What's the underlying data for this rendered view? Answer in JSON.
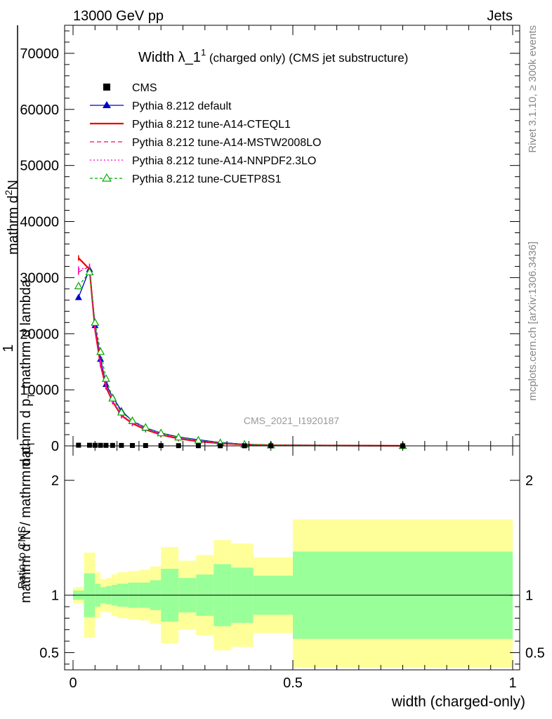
{
  "header": {
    "energy_label": "13000 GeV pp",
    "group_label": "Jets",
    "analysis_id": "CMS_2021_I1920187",
    "side_rivet": "Rivet 3.1.10, ≥ 300k events",
    "side_mcplots": "mcplots.cern.ch [arXiv:1306.3436]"
  },
  "chart_data": [
    {
      "type": "line",
      "title_main": "Width λ_1",
      "title_sup": "1",
      "title_sub": " (charged only) (CMS jet substructure)",
      "ylabel_lines": [
        "1",
        "mathrm d N / mathrm d p",
        "T",
        "mathrm d^{2}N",
        "mathrm d p",
        "T",
        "mathrm d lambda"
      ],
      "ylabel_numerator": "1",
      "ylabel_denominator": "mathrm d N / mathrm d p",
      "ylabel_sub": "T",
      "ylabel_right_top": "mathrm d",
      "ylabel_right_sup": "2",
      "ylabel_right_n": "N",
      "ylabel_right_bottom": "mathrm d p",
      "ylabel_right_bottom_sub": "T",
      "ylabel_right_tail": " mathrm d lambda",
      "ylim": [
        0,
        75000
      ],
      "xlim": [
        -0.02,
        1.0
      ],
      "yticks": [
        0,
        10000,
        20000,
        30000,
        40000,
        50000,
        60000,
        70000
      ],
      "ytick_labels": [
        "0",
        "10000",
        "20000",
        "30000",
        "40000",
        "50000",
        "60000",
        "70000"
      ],
      "x": [
        0.0125,
        0.0375,
        0.05,
        0.0625,
        0.075,
        0.09,
        0.11,
        0.135,
        0.165,
        0.2,
        0.24,
        0.285,
        0.335,
        0.39,
        0.45,
        0.75
      ],
      "series": [
        {
          "name": "CMS",
          "style": "data",
          "color": "#000000",
          "values": [
            120,
            110,
            100,
            95,
            90,
            85,
            80,
            70,
            60,
            50,
            40,
            30,
            20,
            15,
            10,
            2
          ]
        },
        {
          "name": "Pythia 8.212 default",
          "style": "solid-triangle",
          "color": "#0000cc",
          "values": [
            26500,
            31500,
            21500,
            15500,
            11000,
            8700,
            6300,
            4400,
            3200,
            2300,
            1600,
            1100,
            600,
            300,
            150,
            30
          ]
        },
        {
          "name": "Pythia 8.212 tune-A14-CTEQL1",
          "style": "solid",
          "color": "#ee0000",
          "values": [
            33500,
            31500,
            20800,
            14500,
            10500,
            7900,
            5400,
            4000,
            2900,
            2000,
            1300,
            800,
            450,
            230,
            110,
            20
          ]
        },
        {
          "name": "Pythia 8.212 tune-A14-MSTW2008LO",
          "style": "dashed",
          "color": "#ff0066",
          "values": [
            31000,
            32000,
            21000,
            14800,
            10700,
            8000,
            5500,
            4100,
            3000,
            2100,
            1400,
            850,
            470,
            240,
            115,
            22
          ]
        },
        {
          "name": "Pythia 8.212 tune-A14-NNPDF2.3LO",
          "style": "dotted",
          "color": "#ff00cc",
          "values": [
            31500,
            31800,
            21200,
            14900,
            10800,
            8100,
            5600,
            4150,
            3050,
            2150,
            1420,
            870,
            480,
            245,
            118,
            23
          ]
        },
        {
          "name": "Pythia 8.212 tune-CUETP8S1",
          "style": "dashed-open-triangle",
          "color": "#00aa00",
          "values": [
            28500,
            31000,
            22000,
            16800,
            12000,
            8500,
            6000,
            4500,
            3300,
            2300,
            1550,
            1000,
            550,
            280,
            140,
            28
          ]
        }
      ]
    },
    {
      "type": "area",
      "ylabel": "Ratio to CMS",
      "xlabel": "width (charged-only)",
      "ylim": [
        0.35,
        2.3
      ],
      "xlim": [
        -0.02,
        1.0
      ],
      "yticks": [
        0.5,
        1,
        2
      ],
      "ytick_labels": [
        "0.5",
        "1",
        "2"
      ],
      "xticks": [
        0,
        0.5,
        1
      ],
      "xtick_labels": [
        "0",
        "0.5",
        "1"
      ],
      "bin_edges": [
        0,
        0.025,
        0.05,
        0.0625,
        0.075,
        0.0875,
        0.1,
        0.125,
        0.15,
        0.175,
        0.2,
        0.24,
        0.28,
        0.32,
        0.36,
        0.41,
        0.5,
        1.0
      ],
      "band_outer_upper": [
        1.07,
        1.37,
        1.2,
        1.14,
        1.15,
        1.18,
        1.2,
        1.21,
        1.22,
        1.25,
        1.42,
        1.3,
        1.35,
        1.48,
        1.45,
        1.33,
        1.66
      ],
      "band_outer_lower": [
        0.93,
        0.63,
        0.8,
        0.86,
        0.85,
        0.82,
        0.8,
        0.79,
        0.78,
        0.75,
        0.58,
        0.7,
        0.65,
        0.52,
        0.55,
        0.67,
        0.37
      ],
      "band_inner_upper": [
        1.04,
        1.19,
        1.1,
        1.07,
        1.08,
        1.09,
        1.1,
        1.11,
        1.11,
        1.13,
        1.23,
        1.15,
        1.18,
        1.27,
        1.24,
        1.17,
        1.38
      ],
      "band_inner_lower": [
        0.96,
        0.81,
        0.9,
        0.93,
        0.92,
        0.91,
        0.9,
        0.89,
        0.89,
        0.87,
        0.77,
        0.85,
        0.82,
        0.73,
        0.76,
        0.83,
        0.62
      ],
      "reference": 1.0,
      "band_outer_color": "#ffff99",
      "band_inner_color": "#99ff99"
    }
  ]
}
